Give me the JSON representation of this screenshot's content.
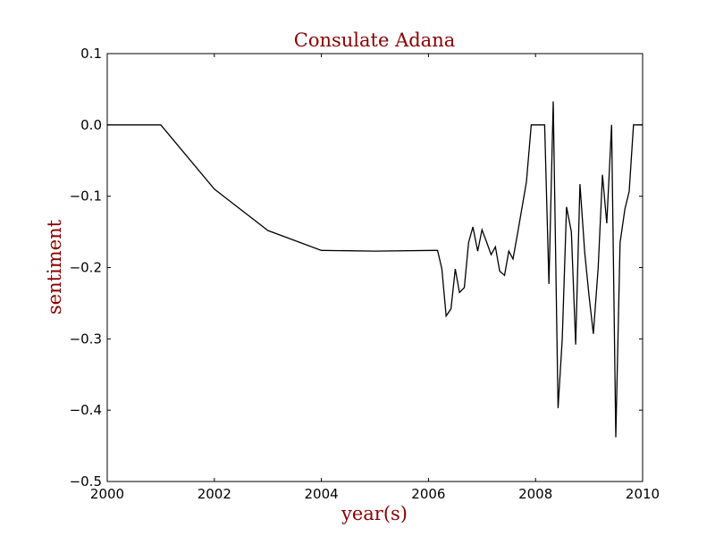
{
  "chart_data": {
    "type": "line",
    "title": "Consulate Adana",
    "xlabel": "year(s)",
    "ylabel": "sentiment",
    "xlim": [
      2000,
      2010
    ],
    "ylim": [
      -0.5,
      0.1
    ],
    "grid": false,
    "label_color": "#8b0000",
    "line_color": "#000000",
    "x_ticks": [
      {
        "value": 2000,
        "label": "2000"
      },
      {
        "value": 2002,
        "label": "2002"
      },
      {
        "value": 2004,
        "label": "2004"
      },
      {
        "value": 2006,
        "label": "2006"
      },
      {
        "value": 2008,
        "label": "2008"
      },
      {
        "value": 2010,
        "label": "2010"
      }
    ],
    "y_ticks": [
      {
        "value": 0.1,
        "label": "0.1"
      },
      {
        "value": 0.0,
        "label": "0.0"
      },
      {
        "value": -0.1,
        "label": "−0.1"
      },
      {
        "value": -0.2,
        "label": "−0.2"
      },
      {
        "value": -0.3,
        "label": "−0.3"
      },
      {
        "value": -0.4,
        "label": "−0.4"
      },
      {
        "value": -0.5,
        "label": "−0.5"
      }
    ],
    "series": [
      {
        "x": [
          2000.0,
          2001.0,
          2002.0,
          2003.0,
          2004.0,
          2005.0,
          2006.08,
          2006.17,
          2006.25,
          2006.33,
          2006.42,
          2006.5,
          2006.58,
          2006.67,
          2006.75,
          2006.83,
          2006.92,
          2007.0,
          2007.08,
          2007.17,
          2007.25,
          2007.33,
          2007.42,
          2007.5,
          2007.58,
          2007.67,
          2007.75,
          2007.83,
          2007.92,
          2008.0,
          2008.08,
          2008.17,
          2008.25,
          2008.33,
          2008.42,
          2008.5,
          2008.58,
          2008.67,
          2008.75,
          2008.83,
          2008.92,
          2009.0,
          2009.08,
          2009.17,
          2009.25,
          2009.33,
          2009.42,
          2009.5,
          2009.58,
          2009.67,
          2009.75,
          2009.83,
          2009.92,
          2010.0
        ],
        "y": [
          0.0,
          0.0,
          -0.09,
          -0.148,
          -0.176,
          -0.177,
          -0.176,
          -0.176,
          -0.202,
          -0.268,
          -0.258,
          -0.202,
          -0.235,
          -0.228,
          -0.165,
          -0.143,
          -0.177,
          -0.147,
          -0.163,
          -0.182,
          -0.171,
          -0.205,
          -0.211,
          -0.177,
          -0.188,
          -0.15,
          -0.115,
          -0.08,
          0.0,
          0.0,
          0.0,
          0.0,
          -0.223,
          0.033,
          -0.397,
          -0.3,
          -0.115,
          -0.15,
          -0.308,
          -0.083,
          -0.18,
          -0.24,
          -0.293,
          -0.2,
          -0.07,
          -0.138,
          0.0,
          -0.438,
          -0.165,
          -0.118,
          -0.093,
          0.0,
          0.0,
          0.0
        ]
      }
    ]
  }
}
